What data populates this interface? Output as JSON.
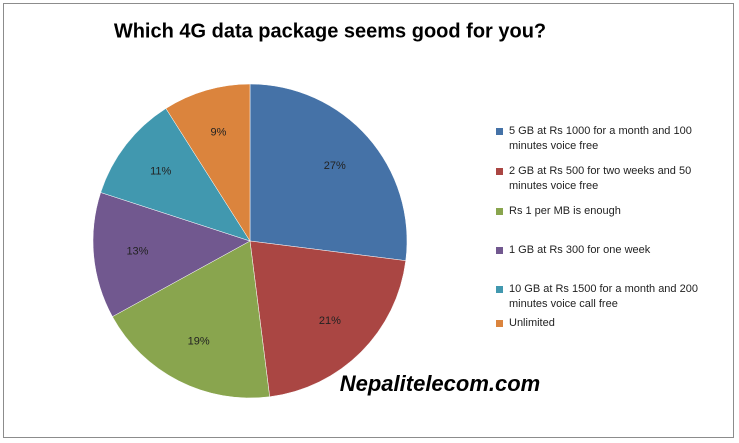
{
  "chart_data": {
    "type": "pie",
    "title": "Which 4G data package seems good for you?",
    "categories": [
      "5 GB at  Rs 1000 for a month and 100 minutes voice free",
      "2 GB at Rs 500 for two weeks and 50 minutes voice free",
      "Rs 1 per MB is enough",
      "1 GB at Rs 300 for one week",
      "10 GB at Rs 1500 for a month and 200 minutes voice call free",
      "Unlimited"
    ],
    "values": [
      27,
      21,
      19,
      13,
      11,
      9
    ],
    "value_labels": [
      "27%",
      "21%",
      "19%",
      "13%",
      "11%",
      "9%"
    ],
    "colors": [
      "#4572a7",
      "#aa4643",
      "#89a54e",
      "#71588f",
      "#4198af",
      "#db843d"
    ],
    "annotation": "Nepalitelecom.com"
  }
}
